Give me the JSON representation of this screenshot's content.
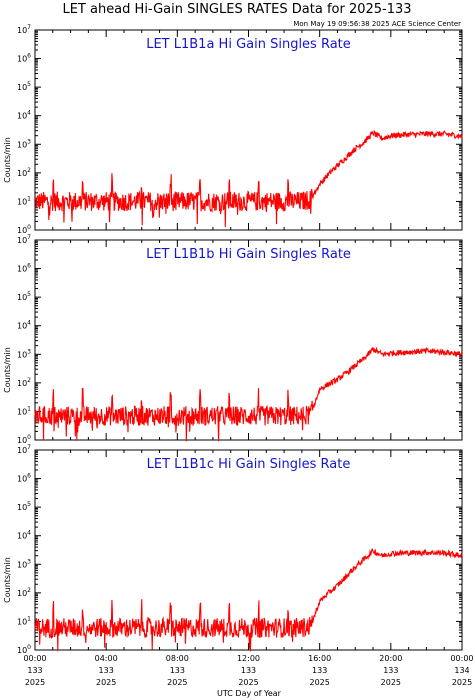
{
  "chart_title": "LET ahead Hi-Gain SINGLES RATES Data for 2025-133",
  "timestamp": "Mon May 19 09:56:38 2025 ACE Science Center",
  "xlabel": "UTC Day of Year",
  "ylabel": "Counts/min",
  "colors": {
    "trace": "#ff0000",
    "panel_title": "#1515d0",
    "axes": "#000000"
  },
  "x_ticks": [
    {
      "time": "00:00",
      "day": "133",
      "year": "2025"
    },
    {
      "time": "04:00",
      "day": "133",
      "year": "2025"
    },
    {
      "time": "08:00",
      "day": "133",
      "year": "2025"
    },
    {
      "time": "12:00",
      "day": "133",
      "year": "2025"
    },
    {
      "time": "16:00",
      "day": "133",
      "year": "2025"
    },
    {
      "time": "20:00",
      "day": "133",
      "year": "2025"
    },
    {
      "time": "00:00",
      "day": "134",
      "year": "2025"
    }
  ],
  "y_ticks": [
    {
      "base": "10",
      "exp": "0"
    },
    {
      "base": "10",
      "exp": "1"
    },
    {
      "base": "10",
      "exp": "2"
    },
    {
      "base": "10",
      "exp": "3"
    },
    {
      "base": "10",
      "exp": "4"
    },
    {
      "base": "10",
      "exp": "5"
    },
    {
      "base": "10",
      "exp": "6"
    },
    {
      "base": "10",
      "exp": "7"
    }
  ],
  "chart_data": [
    {
      "type": "line",
      "title": "LET L1B1a Hi Gain Singles Rate",
      "ylabel": "Counts/min",
      "xlabel": "UTC Day of Year",
      "y_scale": "log",
      "ylim": [
        1,
        10000000
      ],
      "xlim_hours": [
        0,
        24
      ],
      "series": [
        {
          "x_hours": [
            0,
            1,
            2,
            3,
            4,
            5,
            6,
            7,
            8,
            9,
            10,
            11,
            12,
            13,
            14,
            15,
            15.5,
            16,
            16.5,
            17,
            17.5,
            18,
            18.5,
            19,
            19.5,
            20,
            21,
            22,
            23,
            24
          ],
          "values": [
            10,
            10,
            10,
            10,
            10,
            10,
            10,
            10,
            10,
            10,
            10,
            10,
            10,
            10,
            10,
            10,
            12,
            40,
            90,
            180,
            350,
            700,
            1200,
            2500,
            1600,
            2000,
            2200,
            2300,
            2300,
            1900
          ]
        }
      ]
    },
    {
      "type": "line",
      "title": "LET L1B1b Hi Gain Singles Rate",
      "ylabel": "Counts/min",
      "xlabel": "UTC Day of Year",
      "y_scale": "log",
      "ylim": [
        1,
        10000000
      ],
      "xlim_hours": [
        0,
        24
      ],
      "series": [
        {
          "x_hours": [
            0,
            1,
            2,
            3,
            4,
            5,
            6,
            7,
            8,
            9,
            10,
            11,
            12,
            13,
            14,
            15,
            15.5,
            16,
            16.5,
            17,
            17.5,
            18,
            18.5,
            19,
            19.5,
            20,
            21,
            22,
            23,
            24
          ],
          "values": [
            7,
            7,
            7,
            7,
            7,
            7,
            7,
            7,
            7,
            7,
            7,
            7,
            7,
            7,
            7,
            7,
            8,
            60,
            90,
            130,
            220,
            400,
            700,
            1500,
            1000,
            1100,
            1200,
            1300,
            1200,
            1000
          ]
        }
      ]
    },
    {
      "type": "line",
      "title": "LET L1B1c Hi Gain Singles Rate",
      "ylabel": "Counts/min",
      "xlabel": "UTC Day of Year",
      "y_scale": "log",
      "ylim": [
        1,
        10000000
      ],
      "xlim_hours": [
        0,
        24
      ],
      "series": [
        {
          "x_hours": [
            0,
            1,
            2,
            3,
            4,
            5,
            6,
            7,
            8,
            9,
            10,
            11,
            12,
            13,
            14,
            15,
            15.5,
            16,
            16.5,
            17,
            17.5,
            18,
            18.5,
            19,
            19.5,
            20,
            21,
            22,
            23,
            24
          ],
          "values": [
            6,
            6,
            6,
            6,
            6,
            6,
            6,
            6,
            6,
            6,
            6,
            6,
            6,
            6,
            6,
            6,
            7,
            50,
            100,
            180,
            380,
            800,
            1500,
            3000,
            2000,
            2400,
            2500,
            2600,
            2500,
            2000
          ]
        }
      ]
    }
  ]
}
